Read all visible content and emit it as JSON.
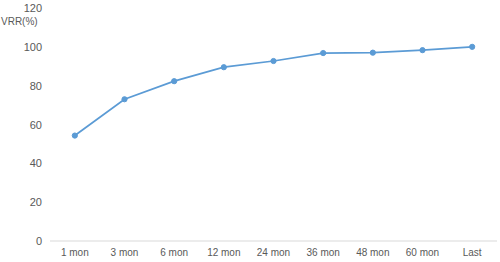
{
  "chart_data": {
    "type": "line",
    "y_label": "VRR(%)",
    "categories": [
      "1 mon",
      "3 mon",
      "6 mon",
      "12 mon",
      "24 mon",
      "36 mon",
      "48 mon",
      "60 mon",
      "Last"
    ],
    "values": [
      54.3,
      73,
      82.3,
      89.5,
      92.7,
      96.8,
      97,
      98.3,
      100
    ],
    "color": "#5b9bd5",
    "marker": "circle",
    "ylim": [
      0,
      120
    ],
    "yticks": [
      0,
      20,
      40,
      60,
      80,
      100,
      120
    ],
    "grid": false
  }
}
